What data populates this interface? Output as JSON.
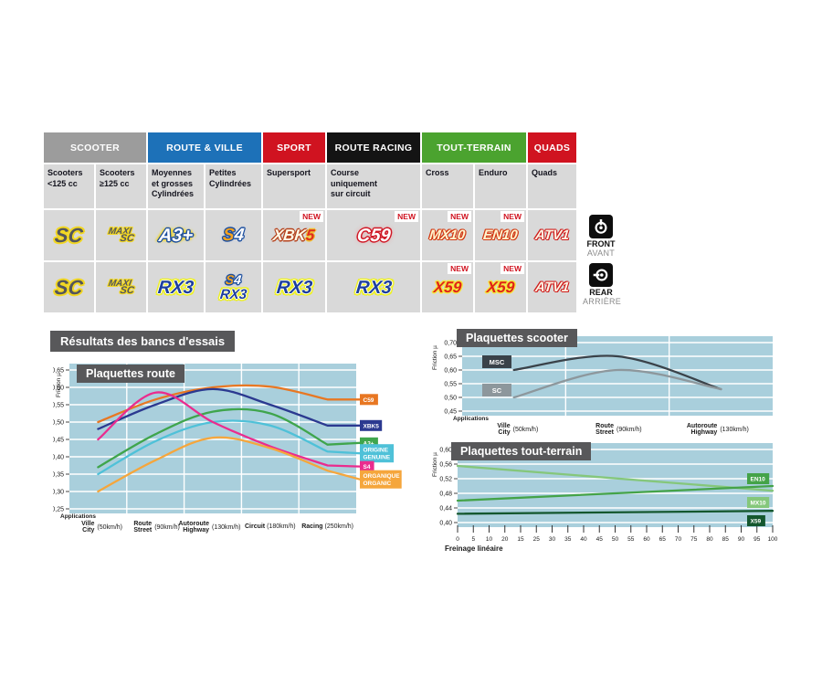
{
  "labels": {
    "new": "NEW"
  },
  "section_title": "Résultats des bancs d'essais",
  "side": {
    "front": {
      "label": "FRONT",
      "sub": "AVANT"
    },
    "rear": {
      "label": "REAR",
      "sub": "ARRIÈRE"
    }
  },
  "table": {
    "groups": [
      {
        "label": "SCOOTER",
        "color": "#9c9c9c"
      },
      {
        "label": "ROUTE & VILLE",
        "color": "#1d71b8"
      },
      {
        "label": "SPORT",
        "color": "#d01320"
      },
      {
        "label": "ROUTE RACING",
        "color": "#141414"
      },
      {
        "label": "TOUT-TERRAIN",
        "color": "#4ba32f"
      },
      {
        "label": "QUADS",
        "color": "#d01320"
      }
    ],
    "columns": [
      {
        "subhead": "Scooters <125 cc",
        "front": "SC",
        "rear": "SC"
      },
      {
        "subhead": "Scooters ≥125 cc",
        "front": "MAXI SC",
        "rear": "MAXI SC"
      },
      {
        "subhead": "Moyennes et grosses Cylindrées",
        "front": "A3+",
        "rear": "RX3"
      },
      {
        "subhead": "Petites Cylindrées",
        "front": "S4",
        "rear": "S4 / RX3"
      },
      {
        "subhead": "Supersport",
        "front": "XBK5 (NEW)",
        "rear": "RX3"
      },
      {
        "subhead": "Course uniquement sur circuit",
        "front": "C59 (NEW)",
        "rear": "RX3"
      },
      {
        "subhead": "Cross",
        "front": "MX10 (NEW)",
        "rear": "X59 (NEW)"
      },
      {
        "subhead": "Enduro",
        "front": "EN10 (NEW)",
        "rear": "X59 (NEW)"
      },
      {
        "subhead": "Quads",
        "front": "ATV1",
        "rear": "ATV1"
      }
    ]
  },
  "logos": {
    "sc": {
      "parts": [
        {
          "t": "SC",
          "k": "a"
        }
      ]
    },
    "maxisc": {
      "parts": [
        {
          "t": "MAXI",
          "k": "m"
        },
        {
          "t": "SC",
          "k": "s"
        }
      ]
    },
    "a3": {
      "parts": [
        {
          "t": "A3+",
          "k": "a"
        }
      ]
    },
    "s4": {
      "parts": [
        {
          "t": "S",
          "k": "s"
        },
        {
          "t": "4",
          "k": "f"
        }
      ]
    },
    "xbk5": {
      "parts": [
        {
          "t": "XBK",
          "k": "a"
        },
        {
          "t": "5",
          "k": "b"
        }
      ]
    },
    "c59": {
      "parts": [
        {
          "t": "C59",
          "k": "a"
        }
      ]
    },
    "mx10": {
      "parts": [
        {
          "t": "MX10",
          "k": "a"
        }
      ]
    },
    "en10": {
      "parts": [
        {
          "t": "EN10",
          "k": "a"
        }
      ]
    },
    "atv1": {
      "parts": [
        {
          "t": "ATV1",
          "k": "a"
        }
      ]
    },
    "rx3": {
      "parts": [
        {
          "t": "RX3",
          "k": "a"
        }
      ]
    },
    "x59": {
      "parts": [
        {
          "t": "X59",
          "k": "a"
        }
      ]
    }
  },
  "chart_data": [
    {
      "type": "line",
      "title": "Plaquettes route",
      "ylabel": "Friction µ",
      "x_axis_label": "Applications",
      "ymin": 0.25,
      "ymax": 0.65,
      "grid": true,
      "yticks": [
        "0,65",
        "0,60",
        "0,55",
        "0,50",
        "0,45",
        "0,40",
        "0,35",
        "0,30",
        "0,25"
      ],
      "categories": [
        {
          "name": "Ville",
          "name2": "City",
          "speed": "(50km/h)"
        },
        {
          "name": "Route",
          "name2": "Street",
          "speed": "(90km/h)"
        },
        {
          "name": "Autoroute",
          "name2": "Highway",
          "speed": "(130km/h)"
        },
        {
          "name": "Circuit",
          "speed": "(180km/h)"
        },
        {
          "name": "Racing",
          "speed": "(250km/h)"
        }
      ],
      "series": [
        {
          "name": "C59",
          "color": "#e87722",
          "values": [
            0.5,
            0.565,
            0.6,
            0.602,
            0.565
          ],
          "tag": [
            "C59"
          ],
          "tag_y": 0.565
        },
        {
          "name": "XBK5",
          "color": "#2b3990",
          "values": [
            0.48,
            0.55,
            0.595,
            0.55,
            0.49
          ],
          "tag": [
            "XBK5"
          ],
          "tag_y": 0.49
        },
        {
          "name": "A3+",
          "color": "#3fa54c",
          "values": [
            0.37,
            0.465,
            0.53,
            0.525,
            0.435
          ],
          "tag": [
            "A3+"
          ],
          "tag_y": 0.44
        },
        {
          "name": "ORIGINE",
          "color": "#4fc1d8",
          "values": [
            0.35,
            0.445,
            0.5,
            0.49,
            0.415
          ],
          "tag": [
            "ORIGINE",
            "GENUINE"
          ],
          "tag_y": 0.41
        },
        {
          "name": "S4",
          "color": "#ea2c8e",
          "values": [
            0.45,
            0.585,
            0.5,
            0.43,
            0.375
          ],
          "tag": [
            "S4"
          ],
          "tag_y": 0.372
        },
        {
          "name": "ORGANIQUE",
          "color": "#f5a63c",
          "values": [
            0.3,
            0.39,
            0.455,
            0.425,
            0.36
          ],
          "tag": [
            "ORGANIQUE",
            "ORGANIC"
          ],
          "tag_y": 0.335
        }
      ]
    },
    {
      "type": "line",
      "title": "Plaquettes scooter",
      "ylabel": "Friction µ",
      "x_axis_label": "Applications",
      "ymin": 0.45,
      "ymax": 0.7,
      "grid": true,
      "legend_position": "inside-left",
      "yticks": [
        "0,70",
        "0,65",
        "0,60",
        "0,55",
        "0,50",
        "0,45"
      ],
      "categories": [
        {
          "name": "Ville",
          "name2": "City",
          "speed": "(50km/h)"
        },
        {
          "name": "Route",
          "name2": "Street",
          "speed": "(90km/h)"
        },
        {
          "name": "Autoroute",
          "name2": "Highway",
          "speed": "(130km/h)"
        }
      ],
      "series": [
        {
          "name": "MSC",
          "color": "#3a4249",
          "values": [
            0.6,
            0.65,
            0.53
          ],
          "legend": "MSC"
        },
        {
          "name": "SC",
          "color": "#8d979c",
          "values": [
            0.5,
            0.6,
            0.53
          ],
          "legend": "SC"
        }
      ]
    },
    {
      "type": "line",
      "title": "Plaquettes tout-terrain",
      "ylabel": "Friction µ",
      "xlabel": "Freinage linéaire",
      "ymin": 0.4,
      "ymax": 0.6,
      "grid": true,
      "yticks": [
        "0,60",
        "0,56",
        "0,52",
        "0,48",
        "0,44",
        "0,40"
      ],
      "xticks": [
        "0",
        "5",
        "10",
        "20",
        "15",
        "25",
        "30",
        "35",
        "40",
        "45",
        "50",
        "55",
        "60",
        "65",
        "70",
        "75",
        "80",
        "85",
        "90",
        "95",
        "100"
      ],
      "xrange": [
        0,
        100
      ],
      "series": [
        {
          "name": "MX10",
          "color": "#85c77b",
          "points": [
            [
              0,
              0.555
            ],
            [
              100,
              0.487
            ]
          ],
          "tag": [
            "MX10"
          ],
          "tag_y": 0.455
        },
        {
          "name": "EN10",
          "color": "#44a348",
          "points": [
            [
              0,
              0.46
            ],
            [
              100,
              0.5
            ]
          ],
          "tag": [
            "EN10"
          ],
          "tag_y": 0.52
        },
        {
          "name": "X59",
          "color": "#14572e",
          "points": [
            [
              0,
              0.424
            ],
            [
              100,
              0.432
            ]
          ],
          "tag": [
            "X59"
          ],
          "tag_y": 0.405
        }
      ]
    }
  ]
}
